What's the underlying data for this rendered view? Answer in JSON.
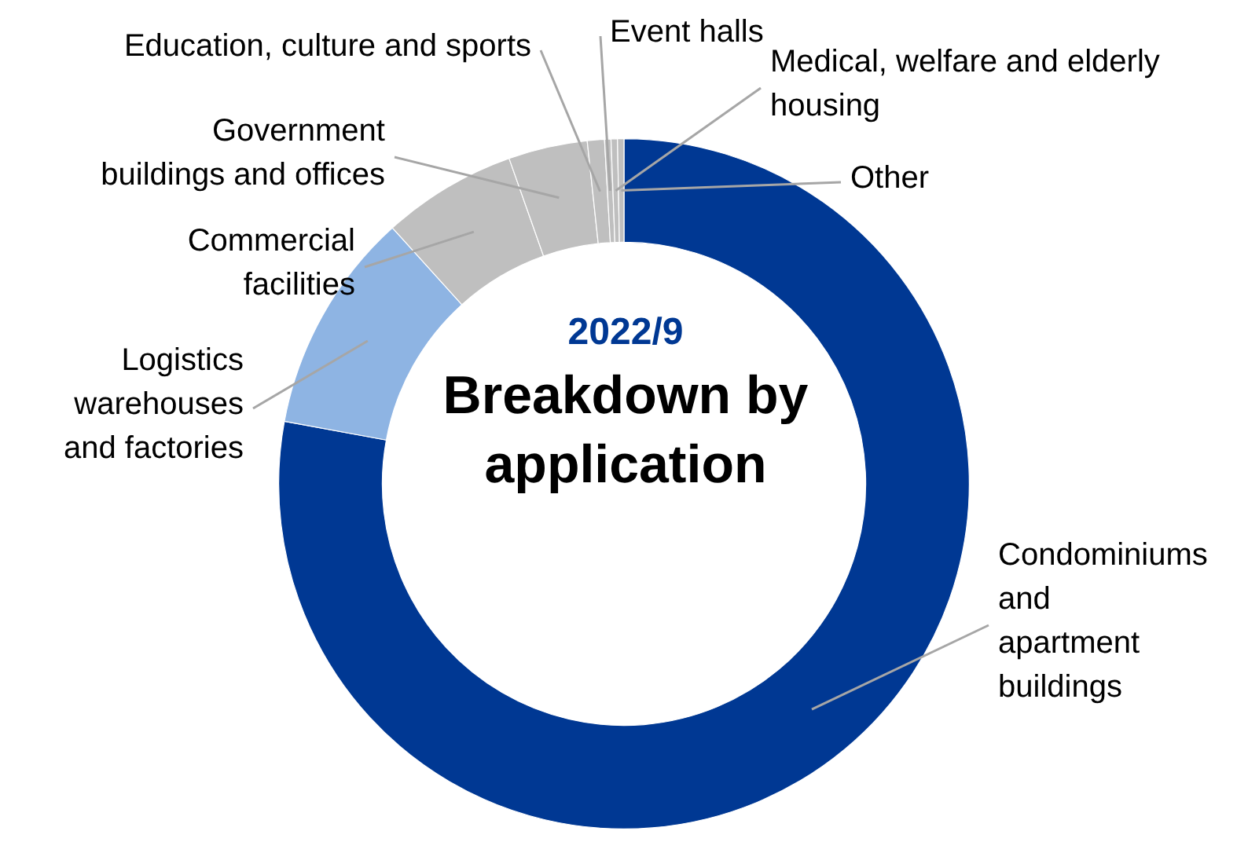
{
  "chart_data": {
    "type": "donut",
    "title": "Breakdown by application",
    "subtitle": "2022/9",
    "categories": [
      "Condominiums and apartment buildings",
      "Logistics warehouses and factories",
      "Commercial facilities",
      "Government buildings and offices",
      "Education, culture and sports",
      "Event halls",
      "Medical, welfare and elderly housing",
      "Other"
    ],
    "values": [
      77.9,
      10.4,
      6.3,
      3.7,
      0.8,
      0.3,
      0.3,
      0.3
    ],
    "colors": [
      "#003893",
      "#8eb4e3",
      "#bfbfbf",
      "#bfbfbf",
      "#bfbfbf",
      "#bfbfbf",
      "#bfbfbf",
      "#bfbfbf"
    ],
    "legend": false
  }
}
